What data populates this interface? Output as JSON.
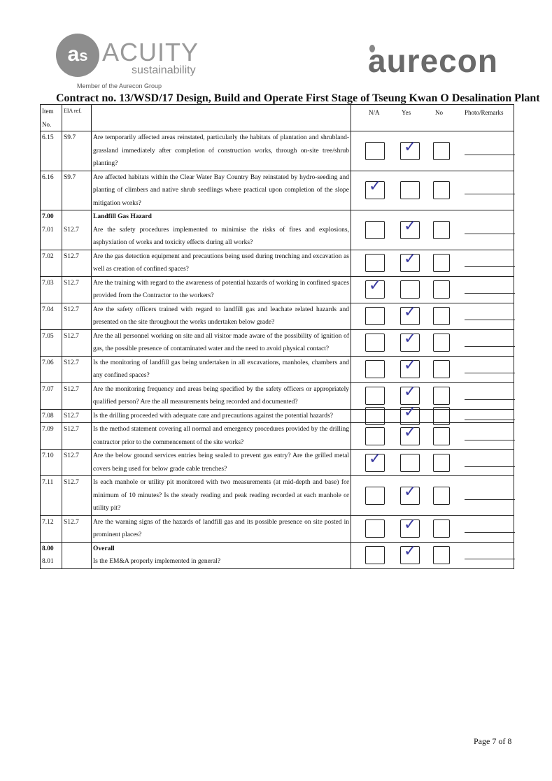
{
  "header": {
    "logo_left": "ACUITY sustainability",
    "logo_left_mark": "acs",
    "member": "Member of the Aurecon Group",
    "logo_right": "aurecon",
    "title": "Contract no.  13/WSD/17 Design, Build and Operate First Stage of Tseung Kwan O Desalination Plant"
  },
  "columns": {
    "item": "Item No.",
    "eia": "EIA ref.",
    "na": "N/A",
    "yes": "Yes",
    "no": "No",
    "remarks": "Photo/Remarks"
  },
  "check_color": "#3a3aa0",
  "rows": [
    {
      "item": "6.15",
      "eia": "S9.7",
      "text": "Are temporarily affected areas reinstated, particularly the habitats of plantation and shrubland-grassland immediately after completion of construction works, through on-site tree/shrub planting?",
      "checked": "Yes"
    },
    {
      "item": "6.16",
      "eia": "S9.7",
      "text": "Are affected habitats within the Clear Water Bay Country Bay reinstated by hydro-seeding and planting of climbers and native shrub seedlings where practical upon completion of the slope mitigation works?",
      "checked": "N/A"
    },
    {
      "section": "7.00",
      "heading": "Landfill Gas Hazard",
      "item": "7.01",
      "eia": "S12.7",
      "text": "Are the safety procedures implemented to minimise the risks of fires and explosions, asphyxiation of works and toxicity effects during all works?",
      "checked": "Yes"
    },
    {
      "item": "7.02",
      "eia": "S12.7",
      "text": "Are the gas detection equipment and precautions being used during trenching and excavation as well as creation of confined spaces?",
      "checked": "Yes"
    },
    {
      "item": "7.03",
      "eia": "S12.7",
      "text": "Are the training with regard to the awareness of potential hazards of working in confined spaces provided from the Contractor to the workers?",
      "checked": "N/A"
    },
    {
      "item": "7.04",
      "eia": "S12.7",
      "text": "Are the safety officers trained with regard to landfill gas and leachate related hazards and presented on the site throughout the works undertaken below grade?",
      "checked": "Yes"
    },
    {
      "item": "7.05",
      "eia": "S12.7",
      "text": "Are the all personnel working on site and all visitor made aware of the possibility of ignition of gas, the possible presence of contaminated water and the need to avoid physical contact?",
      "checked": "Yes"
    },
    {
      "item": "7.06",
      "eia": "S12.7",
      "text": "Is the monitoring of landfill gas being undertaken in all excavations, manholes, chambers and any confined spaces?",
      "checked": "Yes"
    },
    {
      "item": "7.07",
      "eia": "S12.7",
      "text": "Are the monitoring frequency and areas being specified by the safety officers or appropriately qualified person? Are the all measurements being recorded and documented?",
      "checked": "Yes"
    },
    {
      "item": "7.08",
      "eia": "S12.7",
      "text": "Is the drilling proceeded with adequate care and precautions against the potential hazards?",
      "checked": "Yes"
    },
    {
      "item": "7.09",
      "eia": "S12.7",
      "text": "Is the method statement covering all normal and emergency procedures provided by the drilling contractor prior to the commencement of the site works?",
      "checked": "Yes"
    },
    {
      "item": "7.10",
      "eia": "S12.7",
      "text": "Are the below ground services entries being sealed to prevent gas entry? Are the grilled metal covers being used for below grade cable trenches?",
      "checked": "N/A"
    },
    {
      "item": "7.11",
      "eia": "S12.7",
      "text": "Is each manhole or utility pit monitored with two measurements (at mid-depth and base) for minimum of 10 minutes? Is the steady reading and peak reading recorded at each manhole or utility pit?",
      "checked": "Yes"
    },
    {
      "item": "7.12",
      "eia": "S12.7",
      "text": "Are the warning signs of the hazards of landfill gas and its possible presence on site posted in prominent places?",
      "checked": "Yes"
    },
    {
      "section": "8.00",
      "heading": "Overall",
      "item": "8.01",
      "eia": "",
      "text": "Is the EM&A properly implemented in general?",
      "checked": "Yes"
    }
  ],
  "footer": {
    "page": "Page 7 of 8"
  }
}
